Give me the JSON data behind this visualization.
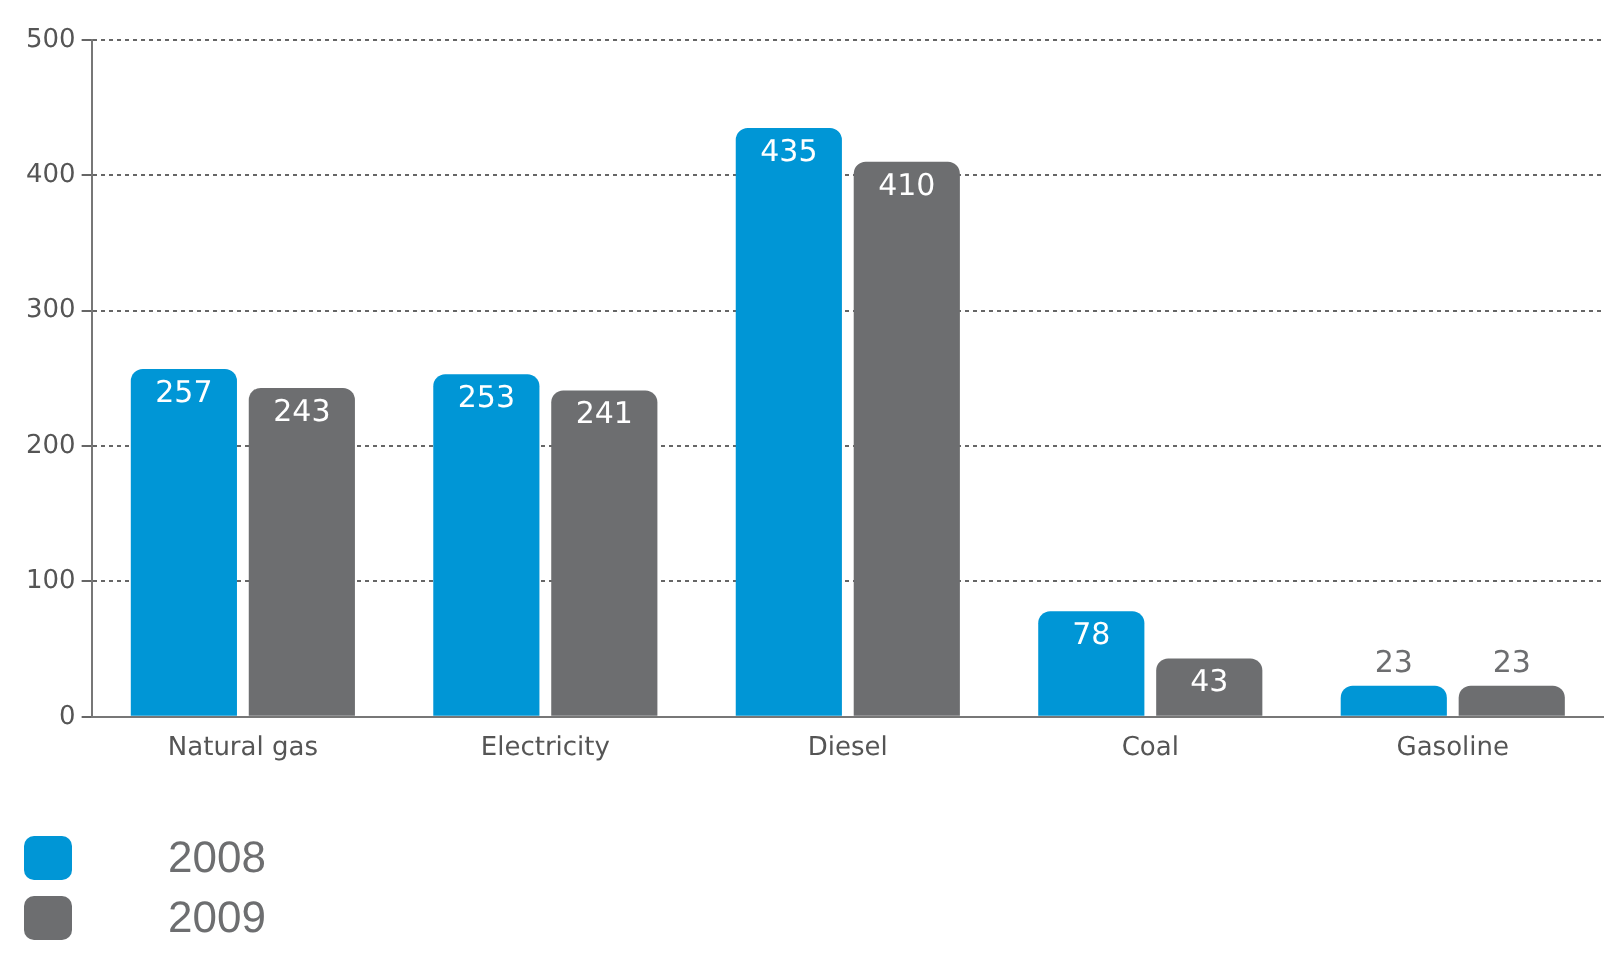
{
  "chart_data": {
    "type": "bar",
    "categories": [
      "Natural gas",
      "Electricity",
      "Diesel",
      "Coal",
      "Gasoline"
    ],
    "series": [
      {
        "name": "2008",
        "color": "#0096d6",
        "values": [
          257,
          253,
          435,
          78,
          23
        ]
      },
      {
        "name": "2009",
        "color": "#6d6e70",
        "values": [
          243,
          241,
          410,
          43,
          23
        ]
      }
    ],
    "ylim": [
      0,
      500
    ],
    "yticks": [
      0,
      100,
      200,
      300,
      400,
      500
    ],
    "grid": "y",
    "legend": "bottom left",
    "data_labels": true
  }
}
